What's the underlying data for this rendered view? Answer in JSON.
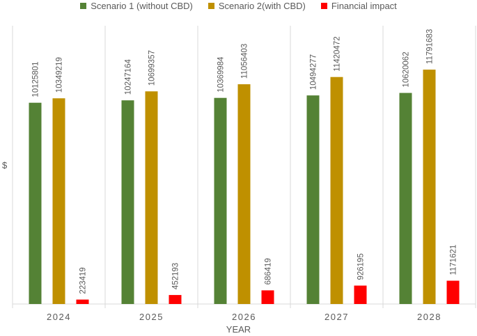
{
  "chart_data": {
    "type": "bar",
    "title": "",
    "xlabel": "YEAR",
    "ylabel": "$",
    "categories": [
      "2024",
      "2025",
      "2026",
      "2027",
      "2028"
    ],
    "series": [
      {
        "name": "Scenario 1 (without CBD)",
        "color": "#548235",
        "values": [
          10125801,
          10247164,
          10369984,
          10494277,
          10620062
        ]
      },
      {
        "name": "Scenario 2(with CBD)",
        "color": "#BF9000",
        "values": [
          10349219,
          10699357,
          11056403,
          11420472,
          11791683
        ]
      },
      {
        "name": "Financial impact",
        "color": "#FF0000",
        "values": [
          223419,
          452193,
          686419,
          926195,
          1171621
        ]
      }
    ],
    "ylim": [
      0,
      14000000
    ],
    "grid": "vertical-separators",
    "legend": "top"
  }
}
